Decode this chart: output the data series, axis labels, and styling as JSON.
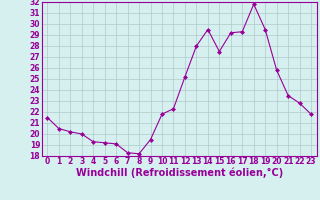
{
  "x": [
    0,
    1,
    2,
    3,
    4,
    5,
    6,
    7,
    8,
    9,
    10,
    11,
    12,
    13,
    14,
    15,
    16,
    17,
    18,
    19,
    20,
    21,
    22,
    23
  ],
  "y": [
    21.5,
    20.5,
    20.2,
    20.0,
    19.3,
    19.2,
    19.1,
    18.3,
    18.2,
    19.5,
    21.8,
    22.3,
    25.2,
    28.0,
    29.5,
    27.5,
    29.2,
    29.3,
    31.8,
    29.5,
    25.8,
    23.5,
    22.8,
    21.8
  ],
  "line_color": "#990099",
  "marker": "D",
  "marker_size": 2,
  "xlabel": "Windchill (Refroidissement éolien,°C)",
  "xlabel_fontsize": 7,
  "bg_color": "#d6f0f0",
  "grid_color": "#b0c8c8",
  "ylim": [
    18,
    32
  ],
  "xlim": [
    -0.5,
    23.5
  ],
  "yticks": [
    18,
    19,
    20,
    21,
    22,
    23,
    24,
    25,
    26,
    27,
    28,
    29,
    30,
    31,
    32
  ],
  "xticks": [
    0,
    1,
    2,
    3,
    4,
    5,
    6,
    7,
    8,
    9,
    10,
    11,
    12,
    13,
    14,
    15,
    16,
    17,
    18,
    19,
    20,
    21,
    22,
    23
  ],
  "tick_fontsize": 5.5,
  "tick_color": "#990099",
  "spine_color": "#990099",
  "xlabel_bold": true
}
